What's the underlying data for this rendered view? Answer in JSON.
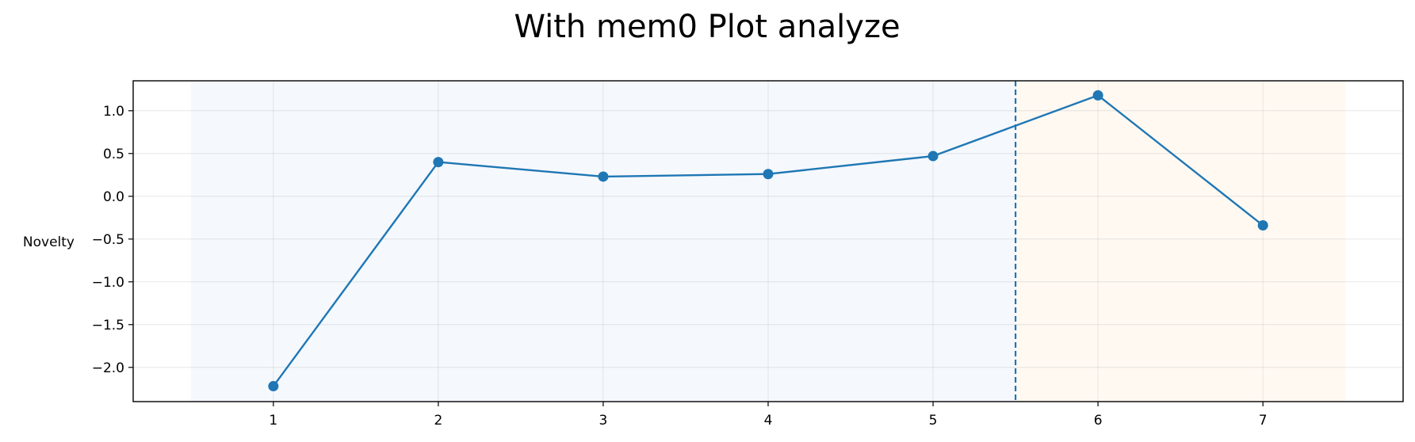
{
  "chart_data": {
    "type": "line",
    "title": "With mem0 Plot analyze",
    "xlabel": "",
    "ylabel": "Novelty",
    "x": [
      1,
      2,
      3,
      4,
      5,
      6,
      7
    ],
    "series": [
      {
        "values": [
          -2.22,
          0.4,
          0.23,
          0.26,
          0.47,
          1.18,
          -0.34
        ],
        "color": "#1f77b4"
      }
    ],
    "xlim": [
      0.15,
      7.85
    ],
    "ylim": [
      -2.4,
      1.35
    ],
    "xticks": [
      1,
      2,
      3,
      4,
      5,
      6,
      7
    ],
    "xtick_labels": [
      "1",
      "2",
      "3",
      "4",
      "5",
      "6",
      "7"
    ],
    "yticks": [
      1.0,
      0.5,
      0.0,
      -0.5,
      -1.0,
      -1.5,
      -2.0
    ],
    "ytick_labels": [
      "1.0",
      "0.5",
      "0.0",
      "−0.5",
      "−1.0",
      "−1.5",
      "−2.0"
    ],
    "grid": true,
    "shaded_regions": [
      {
        "x_start": 0.5,
        "x_end": 5.5,
        "color": "#f5f8fd"
      },
      {
        "x_start": 5.5,
        "x_end": 7.5,
        "color": "#fff9f2"
      }
    ],
    "vertical_line": {
      "x": 5.5,
      "style": "dashed",
      "color": "#1f77b4"
    }
  }
}
